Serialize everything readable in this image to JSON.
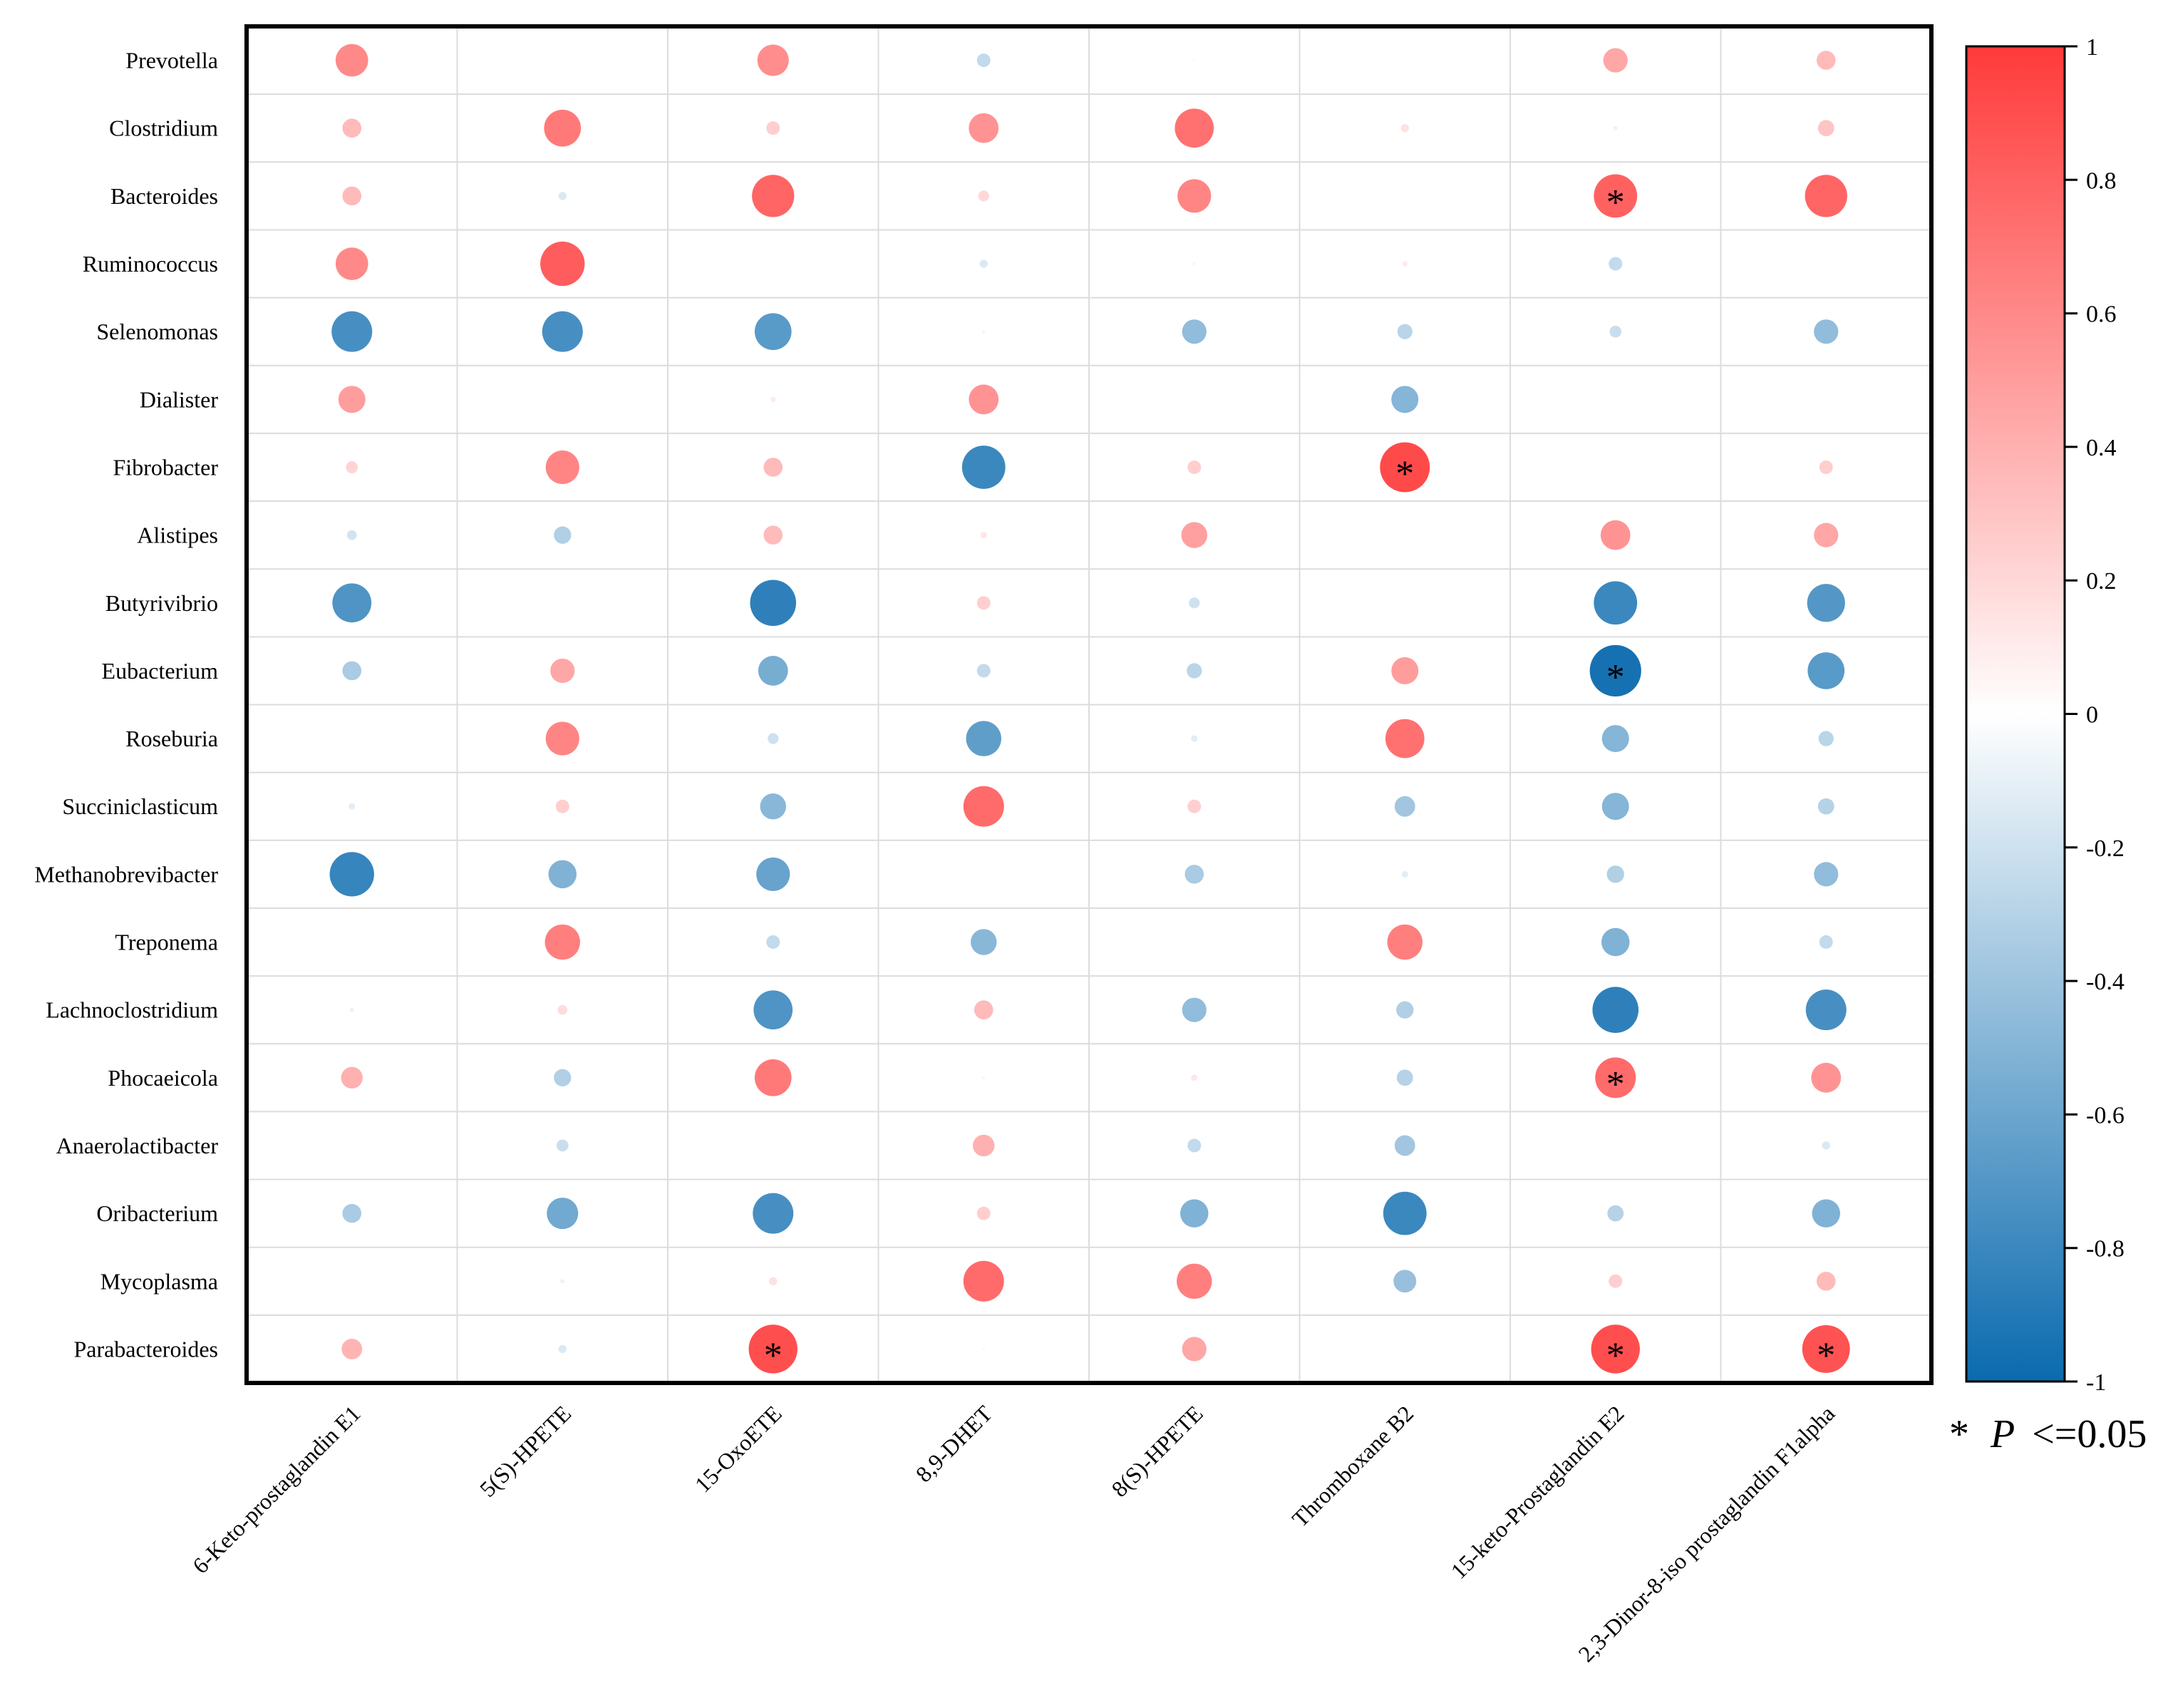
{
  "chart_data": {
    "type": "heatmap",
    "subtype": "correlation-bubble",
    "rows": [
      "Prevotella",
      "Clostridium",
      "Bacteroides",
      "Ruminococcus",
      "Selenomonas",
      "Dialister",
      "Fibrobacter",
      "Alistipes",
      "Butyrivibrio",
      "Eubacterium",
      "Roseburia",
      "Succiniclasticum",
      "Methanobrevibacter",
      "Treponema",
      "Lachnoclostridium",
      "Phocaeicola",
      "Anaerolactibacter",
      "Oribacterium",
      "Mycoplasma",
      "Parabacteroides"
    ],
    "columns": [
      "6-Keto-prostaglandin E1",
      "5(S)-HPETE",
      "15-OxoETE",
      "8,9-DHET",
      "8(S)-HPETE",
      "Thromboxane B2",
      "15-keto-Prostaglandin E2",
      "2,3-Dinor-8-iso prostaglandin F1alpha"
    ],
    "values": [
      [
        0.6,
        0.03,
        0.58,
        -0.25,
        0.04,
        0.03,
        0.45,
        0.35
      ],
      [
        0.35,
        0.68,
        0.25,
        0.55,
        0.72,
        0.15,
        -0.08,
        0.3
      ],
      [
        0.35,
        -0.15,
        0.78,
        0.2,
        0.62,
        0.03,
        0.8,
        0.78
      ],
      [
        0.6,
        0.82,
        0.0,
        -0.15,
        0.06,
        0.1,
        -0.25,
        0.0
      ],
      [
        -0.75,
        -0.75,
        -0.68,
        -0.06,
        -0.45,
        -0.28,
        -0.22,
        -0.45
      ],
      [
        0.5,
        0.03,
        0.1,
        0.55,
        0.0,
        -0.5,
        0.0,
        0.02
      ],
      [
        0.22,
        0.62,
        0.35,
        -0.8,
        0.25,
        0.92,
        0.0,
        0.25
      ],
      [
        -0.18,
        -0.32,
        0.35,
        0.12,
        0.48,
        0.01,
        0.55,
        0.45
      ],
      [
        -0.72,
        0.0,
        -0.85,
        0.25,
        -0.2,
        0.03,
        -0.8,
        -0.7
      ],
      [
        -0.35,
        0.45,
        -0.55,
        -0.25,
        -0.28,
        0.5,
        -0.95,
        -0.68
      ],
      [
        0.0,
        0.62,
        -0.2,
        -0.65,
        -0.12,
        0.72,
        -0.5,
        -0.28
      ],
      [
        -0.12,
        0.25,
        -0.48,
        0.75,
        0.25,
        -0.38,
        -0.5,
        -0.3
      ],
      [
        -0.82,
        -0.52,
        -0.62,
        0.01,
        -0.35,
        -0.12,
        -0.32,
        -0.45
      ],
      [
        0.0,
        0.65,
        -0.25,
        -0.48,
        0.02,
        0.65,
        -0.52,
        -0.25
      ],
      [
        -0.08,
        0.18,
        -0.72,
        0.35,
        -0.45,
        -0.32,
        -0.85,
        -0.75
      ],
      [
        0.4,
        -0.32,
        0.68,
        0.06,
        0.12,
        -0.3,
        0.75,
        0.55
      ],
      [
        0.0,
        -0.22,
        0.0,
        0.4,
        -0.25,
        -0.38,
        0.03,
        -0.15
      ],
      [
        -0.35,
        -0.58,
        -0.75,
        0.25,
        -0.52,
        -0.8,
        -0.3,
        -0.52
      ],
      [
        0.01,
        -0.08,
        0.15,
        0.75,
        0.65,
        -0.42,
        0.25,
        0.35
      ],
      [
        0.38,
        -0.15,
        0.9,
        0.05,
        0.45,
        0.0,
        0.9,
        0.88
      ]
    ],
    "significant": [
      [
        2,
        6
      ],
      [
        6,
        5
      ],
      [
        9,
        6
      ],
      [
        15,
        6
      ],
      [
        19,
        2
      ],
      [
        19,
        6
      ],
      [
        19,
        7
      ]
    ],
    "significance_symbol": "*",
    "colorbar": {
      "range": [
        -1,
        1
      ],
      "ticks": [
        "1",
        "0.8",
        "0.6",
        "0.4",
        "0.2",
        "0",
        "-0.2",
        "-0.4",
        "-0.6",
        "-0.8",
        "-1"
      ],
      "high_color": "#ff3a3a",
      "mid_color": "#ffffff",
      "low_color": "#0a6aae"
    },
    "legend_note_symbol": "*",
    "legend_note_p": "P",
    "legend_note_rest": "<=0.05"
  }
}
